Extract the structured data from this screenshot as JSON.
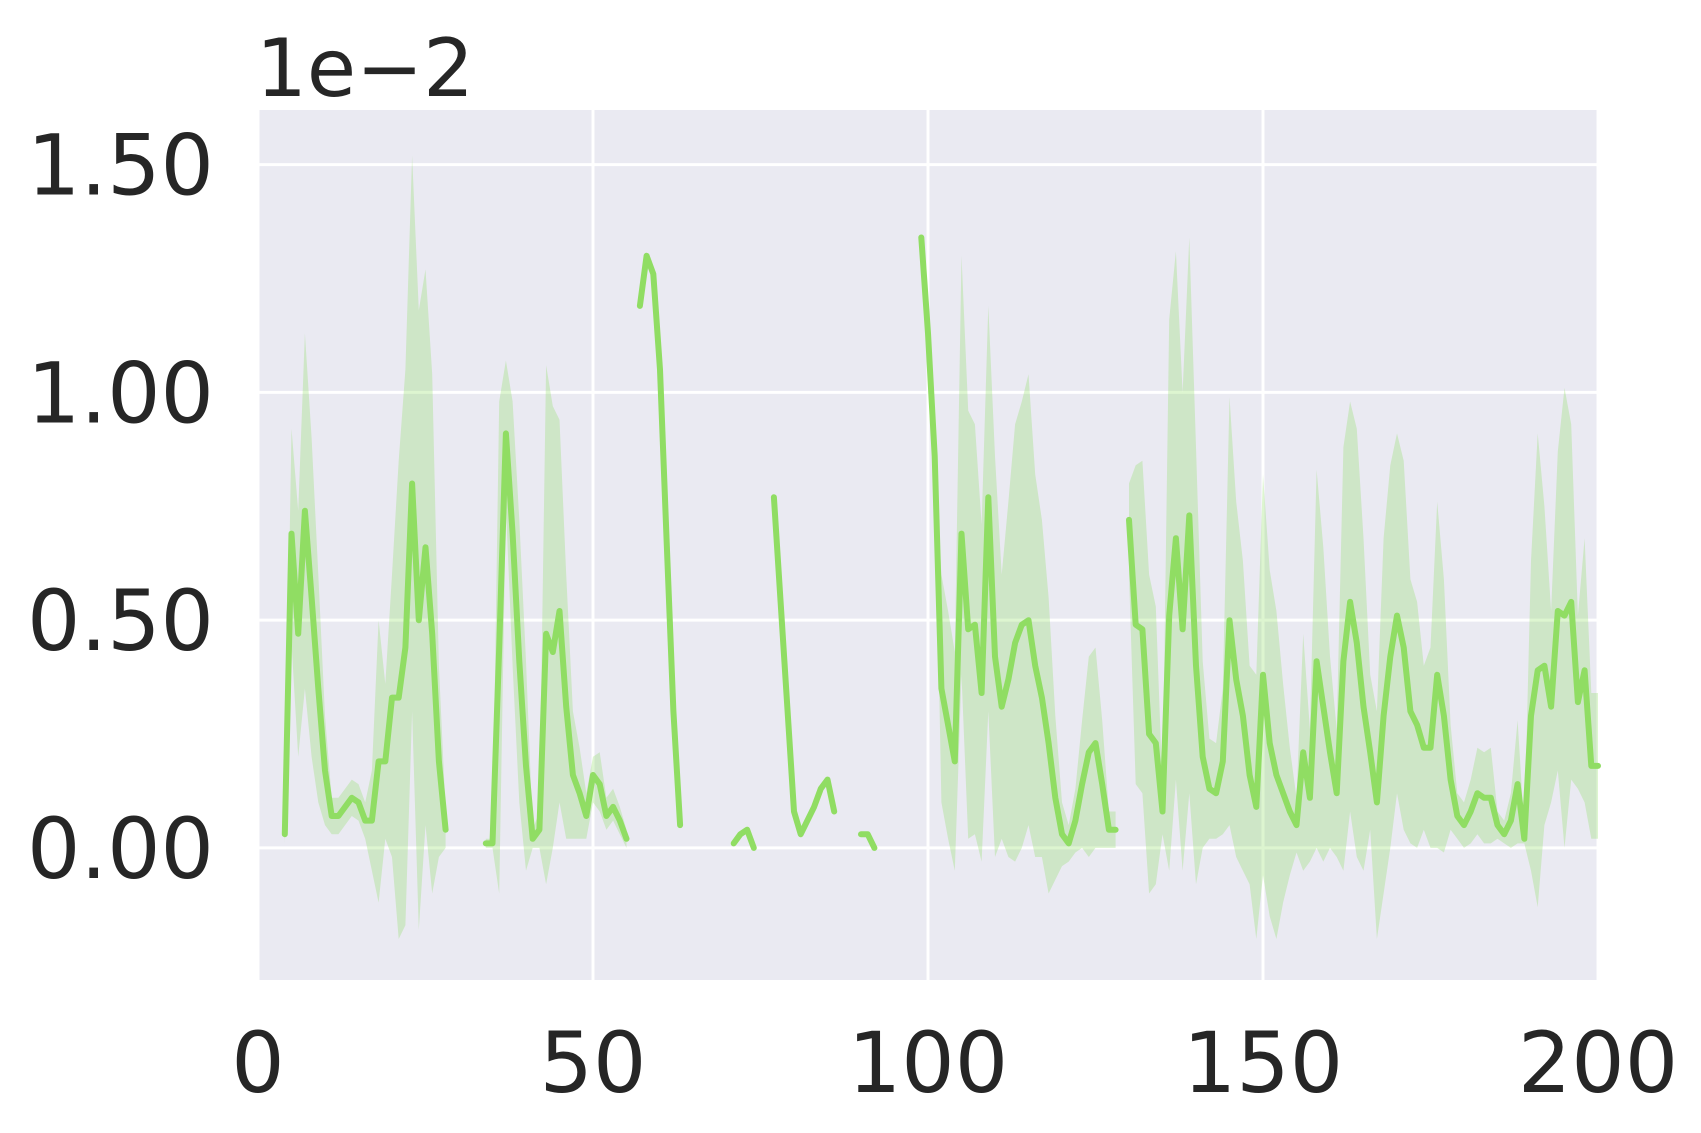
{
  "chart_data": {
    "type": "line",
    "title": "",
    "xlabel": "",
    "ylabel": "",
    "y_offset_label": "1e−2",
    "xlim": [
      0,
      200
    ],
    "ylim": [
      -0.29,
      1.62
    ],
    "xticks": [
      0,
      50,
      100,
      150,
      200
    ],
    "xtick_labels": [
      "0",
      "50",
      "100",
      "150",
      "200"
    ],
    "yticks": [
      0,
      0.5,
      1.0,
      1.5
    ],
    "ytick_labels": [
      "0.00",
      "0.50",
      "1.00",
      "1.50"
    ],
    "grid": true,
    "legend": "none",
    "colors": {
      "line": "#90dd63",
      "band": "#90dd63",
      "plot_bg": "#eaeaf2",
      "grid": "#ffffff",
      "text": "#262626"
    },
    "series": [
      {
        "segments": [
          {
            "x": [
              4,
              5,
              6,
              7,
              8,
              9,
              10,
              11,
              12,
              13,
              14,
              15,
              16,
              17,
              18,
              19,
              20,
              21,
              22,
              23,
              24,
              25,
              26,
              27,
              28
            ],
            "y": [
              0.03,
              0.69,
              0.47,
              0.74,
              0.55,
              0.35,
              0.17,
              0.07,
              0.07,
              0.09,
              0.11,
              0.1,
              0.06,
              0.06,
              0.19,
              0.19,
              0.33,
              0.33,
              0.44,
              0.8,
              0.5,
              0.66,
              0.47,
              0.19,
              0.04
            ],
            "lower": [
              0.01,
              0.45,
              0.2,
              0.35,
              0.2,
              0.1,
              0.05,
              0.03,
              0.03,
              0.05,
              0.07,
              0.06,
              0.02,
              -0.05,
              -0.12,
              0.02,
              -0.02,
              -0.2,
              -0.17,
              0.3,
              -0.18,
              0.05,
              -0.1,
              -0.02,
              0.0
            ],
            "upper": [
              0.05,
              0.92,
              0.74,
              1.13,
              0.9,
              0.6,
              0.29,
              0.11,
              0.11,
              0.13,
              0.15,
              0.14,
              0.1,
              0.17,
              0.5,
              0.36,
              0.6,
              0.85,
              1.05,
              1.52,
              1.18,
              1.27,
              1.04,
              0.4,
              0.08
            ]
          },
          {
            "x": [
              34,
              35,
              36,
              37,
              38,
              39,
              40,
              41,
              42,
              43,
              44,
              45,
              46,
              47,
              48,
              49,
              50,
              51,
              52,
              53,
              54,
              55
            ],
            "y": [
              0.01,
              0.01,
              0.44,
              0.91,
              0.69,
              0.41,
              0.18,
              0.02,
              0.04,
              0.47,
              0.43,
              0.52,
              0.31,
              0.16,
              0.12,
              0.07,
              0.16,
              0.14,
              0.07,
              0.09,
              0.06,
              0.02
            ],
            "lower": [
              0.0,
              0.0,
              -0.1,
              0.75,
              0.4,
              0.1,
              -0.05,
              0.0,
              0.0,
              -0.08,
              0.0,
              0.1,
              0.02,
              0.02,
              0.02,
              0.02,
              0.1,
              0.08,
              0.04,
              0.06,
              0.03,
              0.0
            ],
            "upper": [
              0.02,
              0.02,
              0.98,
              1.07,
              0.98,
              0.72,
              0.41,
              0.04,
              0.08,
              1.06,
              0.97,
              0.94,
              0.6,
              0.3,
              0.22,
              0.12,
              0.2,
              0.21,
              0.11,
              0.13,
              0.09,
              0.04
            ]
          },
          {
            "x": [
              57,
              58,
              59,
              60,
              61,
              62,
              63
            ],
            "y": [
              1.19,
              1.3,
              1.26,
              1.05,
              0.67,
              0.3,
              0.05
            ],
            "lower": [
              1.19,
              1.3,
              1.26,
              1.05,
              0.67,
              0.3,
              0.05
            ],
            "upper": [
              1.19,
              1.3,
              1.26,
              1.05,
              0.67,
              0.3,
              0.05
            ]
          },
          {
            "x": [
              71,
              72,
              73,
              74
            ],
            "y": [
              0.01,
              0.03,
              0.04,
              0.0
            ],
            "lower": [
              0.01,
              0.03,
              0.04,
              0.0
            ],
            "upper": [
              0.01,
              0.03,
              0.04,
              0.0
            ]
          },
          {
            "x": [
              77,
              78,
              79,
              80,
              81,
              82,
              83,
              84,
              85,
              86
            ],
            "y": [
              0.77,
              0.54,
              0.31,
              0.08,
              0.03,
              0.06,
              0.09,
              0.13,
              0.15,
              0.08
            ],
            "lower": [
              0.77,
              0.54,
              0.31,
              0.08,
              0.03,
              0.06,
              0.09,
              0.13,
              0.15,
              0.08
            ],
            "upper": [
              0.77,
              0.54,
              0.31,
              0.08,
              0.03,
              0.06,
              0.09,
              0.13,
              0.15,
              0.08
            ]
          },
          {
            "x": [
              90,
              91,
              92
            ],
            "y": [
              0.03,
              0.03,
              0.0
            ],
            "lower": [
              0.03,
              0.03,
              0.0
            ],
            "upper": [
              0.03,
              0.03,
              0.0
            ]
          },
          {
            "x": [
              99,
              100,
              101,
              102,
              103,
              104,
              105,
              106,
              107,
              108,
              109,
              110,
              111,
              112,
              113,
              114,
              115,
              116,
              117,
              118,
              119,
              120,
              121,
              122,
              123,
              124,
              125,
              126,
              127,
              128
            ],
            "y": [
              1.34,
              1.13,
              0.86,
              0.35,
              0.27,
              0.19,
              0.69,
              0.48,
              0.49,
              0.34,
              0.77,
              0.42,
              0.31,
              0.37,
              0.45,
              0.49,
              0.5,
              0.4,
              0.33,
              0.23,
              0.11,
              0.03,
              0.01,
              0.06,
              0.14,
              0.21,
              0.23,
              0.14,
              0.04,
              0.04
            ],
            "lower": [
              1.34,
              1.13,
              0.86,
              0.1,
              0.02,
              -0.05,
              0.38,
              0.02,
              0.03,
              -0.03,
              0.3,
              -0.02,
              0.02,
              -0.02,
              -0.03,
              0.0,
              0.05,
              -0.02,
              -0.02,
              -0.1,
              -0.07,
              -0.04,
              -0.03,
              -0.01,
              0.0,
              -0.02,
              0.0,
              0.0,
              0.0,
              0.0
            ],
            "upper": [
              1.34,
              1.13,
              0.86,
              0.6,
              0.52,
              0.43,
              1.3,
              0.96,
              0.93,
              0.71,
              1.19,
              0.86,
              0.6,
              0.76,
              0.93,
              0.98,
              1.04,
              0.82,
              0.72,
              0.55,
              0.29,
              0.1,
              0.05,
              0.13,
              0.28,
              0.42,
              0.44,
              0.28,
              0.08,
              0.08
            ]
          },
          {
            "x": [
              130,
              131,
              132,
              133,
              134,
              135,
              136,
              137,
              138,
              139,
              140,
              141,
              142,
              143,
              144,
              145,
              146,
              147,
              148,
              149,
              150,
              151,
              152,
              153,
              154,
              155,
              156,
              157,
              158,
              159,
              160,
              161,
              162,
              163,
              164,
              165,
              166,
              167,
              168,
              169,
              170,
              171,
              172,
              173,
              174,
              175,
              176,
              177,
              178,
              179,
              180,
              181,
              182,
              183,
              184,
              185,
              186,
              187,
              188,
              189,
              190,
              191,
              192,
              193,
              194,
              195,
              196,
              197,
              198,
              199,
              200
            ],
            "y": [
              0.72,
              0.49,
              0.48,
              0.25,
              0.23,
              0.08,
              0.51,
              0.68,
              0.48,
              0.73,
              0.4,
              0.2,
              0.13,
              0.12,
              0.19,
              0.5,
              0.37,
              0.29,
              0.16,
              0.09,
              0.38,
              0.23,
              0.16,
              0.12,
              0.08,
              0.05,
              0.21,
              0.11,
              0.41,
              0.31,
              0.21,
              0.12,
              0.41,
              0.54,
              0.45,
              0.31,
              0.21,
              0.1,
              0.29,
              0.42,
              0.51,
              0.44,
              0.3,
              0.27,
              0.22,
              0.22,
              0.38,
              0.29,
              0.15,
              0.07,
              0.05,
              0.08,
              0.12,
              0.11,
              0.11,
              0.05,
              0.03,
              0.06,
              0.14,
              0.02,
              0.29,
              0.39,
              0.4,
              0.31,
              0.52,
              0.51,
              0.54,
              0.32,
              0.39,
              0.18,
              0.18
            ],
            "lower": [
              0.6,
              0.14,
              0.12,
              -0.1,
              -0.08,
              0.03,
              -0.05,
              0.15,
              -0.05,
              0.12,
              -0.08,
              0.0,
              0.02,
              0.02,
              0.03,
              0.05,
              -0.02,
              -0.05,
              -0.08,
              -0.2,
              -0.06,
              -0.15,
              -0.2,
              -0.12,
              -0.06,
              -0.01,
              -0.05,
              -0.03,
              0.0,
              -0.03,
              0.0,
              -0.02,
              -0.05,
              0.08,
              -0.02,
              -0.05,
              0.04,
              -0.2,
              -0.1,
              0.0,
              0.12,
              0.04,
              0.01,
              0.0,
              0.04,
              0.0,
              0.0,
              -0.01,
              0.04,
              0.02,
              0.0,
              0.01,
              0.03,
              0.01,
              0.01,
              0.02,
              0.01,
              0.0,
              0.01,
              0.01,
              -0.05,
              -0.13,
              0.05,
              0.1,
              0.17,
              0.0,
              0.15,
              0.13,
              0.1,
              0.02,
              0.02
            ],
            "upper": [
              0.8,
              0.84,
              0.85,
              0.6,
              0.53,
              0.13,
              1.16,
              1.31,
              1.0,
              1.34,
              0.88,
              0.41,
              0.24,
              0.23,
              0.35,
              0.99,
              0.76,
              0.63,
              0.4,
              0.38,
              0.82,
              0.61,
              0.52,
              0.36,
              0.22,
              0.11,
              0.47,
              0.26,
              0.83,
              0.66,
              0.42,
              0.26,
              0.88,
              0.98,
              0.92,
              0.68,
              0.38,
              0.3,
              0.68,
              0.84,
              0.91,
              0.85,
              0.59,
              0.54,
              0.4,
              0.44,
              0.76,
              0.59,
              0.27,
              0.12,
              0.1,
              0.15,
              0.22,
              0.21,
              0.22,
              0.08,
              0.06,
              0.12,
              0.28,
              0.04,
              0.63,
              0.91,
              0.75,
              0.52,
              0.87,
              1.01,
              0.93,
              0.51,
              0.68,
              0.34,
              0.34
            ]
          }
        ]
      }
    ]
  }
}
